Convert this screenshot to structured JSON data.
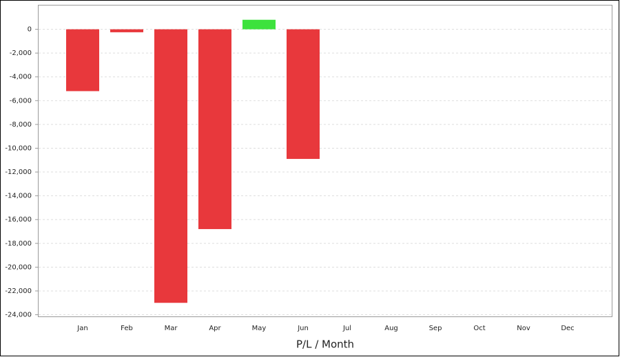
{
  "chart_data": {
    "type": "bar",
    "x_label": "P/L / Month",
    "categories": [
      "Jan",
      "Feb",
      "Mar",
      "Apr",
      "May",
      "Jun",
      "Jul",
      "Aug",
      "Sep",
      "Oct",
      "Nov",
      "Dec"
    ],
    "values": [
      -5200,
      -250,
      -23000,
      -16800,
      800,
      -10900,
      null,
      null,
      null,
      null,
      null,
      null
    ],
    "positive_color": "#3de23d",
    "negative_color": "#e8383c",
    "ylim": [
      -24200,
      2000
    ],
    "yticks": [
      0,
      {
        "value": -2000,
        "label": "-2,000"
      },
      {
        "value": -4000,
        "label": "-4,000"
      },
      {
        "value": -6000,
        "label": "-6,000"
      },
      {
        "value": -8000,
        "label": "-8,000"
      },
      {
        "value": -10000,
        "label": "-10,000"
      },
      {
        "value": -12000,
        "label": "-12,000"
      },
      {
        "value": -14000,
        "label": "-14,000"
      },
      {
        "value": -16000,
        "label": "-16,000"
      },
      {
        "value": -18000,
        "label": "-18,000"
      },
      {
        "value": -20000,
        "label": "-20,000"
      },
      {
        "value": -22000,
        "label": "-22,000"
      },
      {
        "value": -24000,
        "label": "-24,000"
      }
    ],
    "grid": true
  }
}
